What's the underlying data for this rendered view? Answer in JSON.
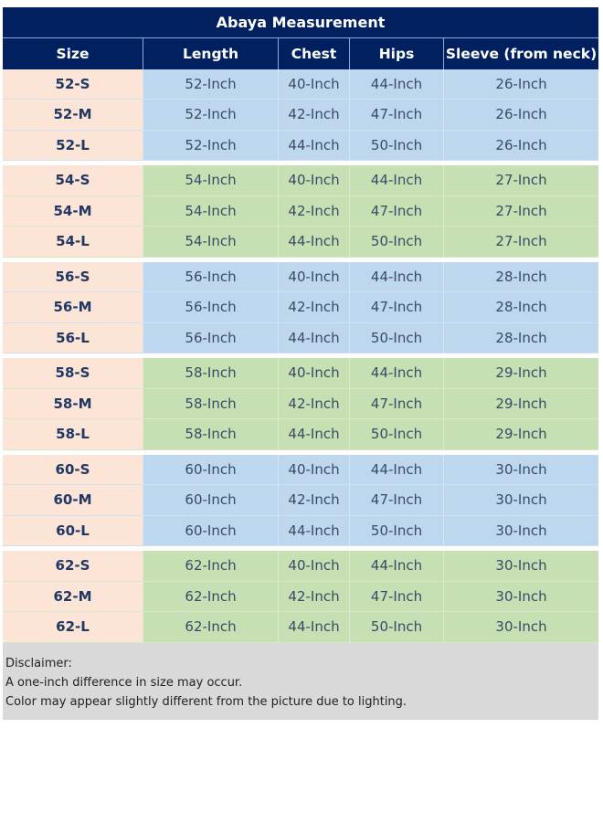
{
  "title": "Abaya Measurement",
  "headers": [
    "Size",
    "Length",
    "Chest",
    "Hips",
    "Sleeve (from neck)"
  ],
  "colors": {
    "header": "#002060",
    "size_col": "#fce4d6",
    "blue_group": "#bdd7ee",
    "green_group": "#c6e0b4",
    "disclaimer_bg": "#d9d9d9"
  },
  "groups": [
    {
      "color": "blue",
      "rows": [
        [
          "52-S",
          "52-Inch",
          "40-Inch",
          "44-Inch",
          "26-Inch"
        ],
        [
          "52-M",
          "52-Inch",
          "42-Inch",
          "47-Inch",
          "26-Inch"
        ],
        [
          "52-L",
          "52-Inch",
          "44-Inch",
          "50-Inch",
          "26-Inch"
        ]
      ]
    },
    {
      "color": "green",
      "rows": [
        [
          "54-S",
          "54-Inch",
          "40-Inch",
          "44-Inch",
          "27-Inch"
        ],
        [
          "54-M",
          "54-Inch",
          "42-Inch",
          "47-Inch",
          "27-Inch"
        ],
        [
          "54-L",
          "54-Inch",
          "44-Inch",
          "50-Inch",
          "27-Inch"
        ]
      ]
    },
    {
      "color": "blue",
      "rows": [
        [
          "56-S",
          "56-Inch",
          "40-Inch",
          "44-Inch",
          "28-Inch"
        ],
        [
          "56-M",
          "56-Inch",
          "42-Inch",
          "47-Inch",
          "28-Inch"
        ],
        [
          "56-L",
          "56-Inch",
          "44-Inch",
          "50-Inch",
          "28-Inch"
        ]
      ]
    },
    {
      "color": "green",
      "rows": [
        [
          "58-S",
          "58-Inch",
          "40-Inch",
          "44-Inch",
          "29-Inch"
        ],
        [
          "58-M",
          "58-Inch",
          "42-Inch",
          "47-Inch",
          "29-Inch"
        ],
        [
          "58-L",
          "58-Inch",
          "44-Inch",
          "50-Inch",
          "29-Inch"
        ]
      ]
    },
    {
      "color": "blue",
      "rows": [
        [
          "60-S",
          "60-Inch",
          "40-Inch",
          "44-Inch",
          "30-Inch"
        ],
        [
          "60-M",
          "60-Inch",
          "42-Inch",
          "47-Inch",
          "30-Inch"
        ],
        [
          "60-L",
          "60-Inch",
          "44-Inch",
          "50-Inch",
          "30-Inch"
        ]
      ]
    },
    {
      "color": "green",
      "rows": [
        [
          "62-S",
          "62-Inch",
          "40-Inch",
          "44-Inch",
          "30-Inch"
        ],
        [
          "62-M",
          "62-Inch",
          "42-Inch",
          "47-Inch",
          "30-Inch"
        ],
        [
          "62-L",
          "62-Inch",
          "44-Inch",
          "50-Inch",
          "30-Inch"
        ]
      ]
    }
  ],
  "disclaimer": {
    "heading": "Disclaimer:",
    "lines": [
      "A one-inch difference in size may occur.",
      "Color may appear slightly different from the picture due to lighting."
    ]
  }
}
